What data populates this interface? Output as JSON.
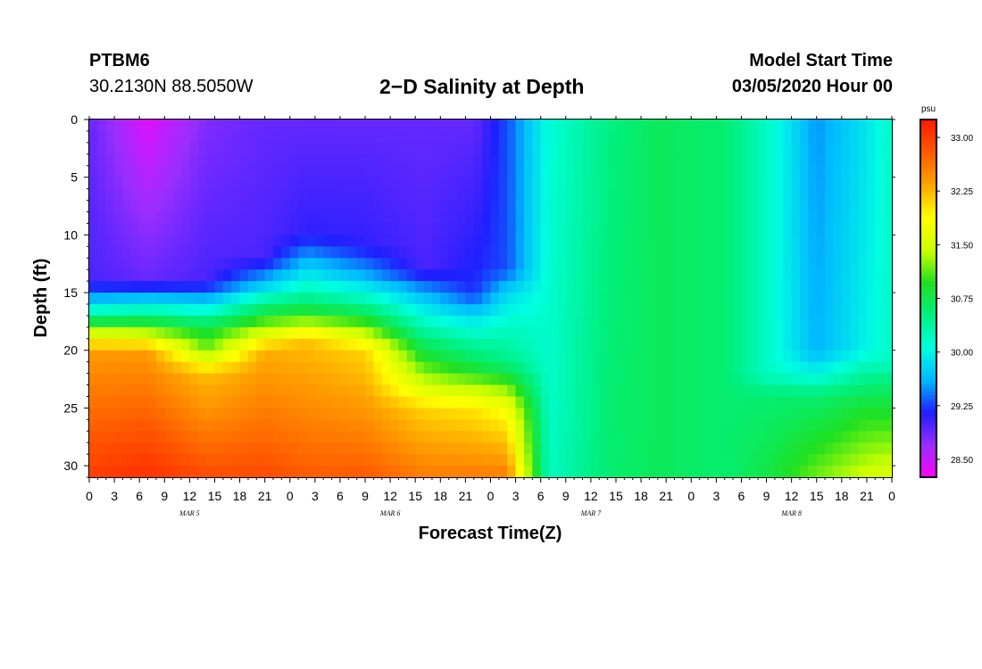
{
  "header": {
    "station_id": "PTBM6",
    "station_coords": "30.2130N 88.5050W",
    "title": "2−D Salinity at Depth",
    "model_label": "Model Start Time",
    "model_time": "03/05/2020 Hour 00"
  },
  "chart_data": {
    "type": "heatmap",
    "title": "2−D Salinity at Depth",
    "xlabel": "Forecast Time(Z)",
    "ylabel": "Depth (ft)",
    "x_units": "hours since 03/05/2020 00Z",
    "xlim": [
      0,
      96
    ],
    "ylim": [
      0,
      31
    ],
    "y_inverted": true,
    "x_tick_values": [
      0,
      3,
      6,
      9,
      12,
      15,
      18,
      21,
      24,
      27,
      30,
      33,
      36,
      39,
      42,
      45,
      48,
      51,
      54,
      57,
      60,
      63,
      66,
      69,
      72,
      75,
      78,
      81,
      84,
      87,
      90,
      93,
      96
    ],
    "x_tick_labels": [
      "0",
      "3",
      "6",
      "9",
      "12",
      "15",
      "18",
      "21",
      "0",
      "3",
      "6",
      "9",
      "12",
      "15",
      "18",
      "21",
      "0",
      "3",
      "6",
      "9",
      "12",
      "15",
      "18",
      "21",
      "0",
      "3",
      "6",
      "9",
      "12",
      "15",
      "18",
      "21",
      "0"
    ],
    "day_labels": [
      {
        "x": 12,
        "label": "MAR  5"
      },
      {
        "x": 36,
        "label": "MAR  6"
      },
      {
        "x": 60,
        "label": "MAR  7"
      },
      {
        "x": 84,
        "label": "MAR  8"
      }
    ],
    "y_tick_values": [
      0,
      5,
      10,
      15,
      20,
      25,
      30
    ],
    "y_tick_labels": [
      "0",
      "5",
      "10",
      "15",
      "20",
      "25",
      "30"
    ],
    "colorbar": {
      "units": "psu",
      "range": [
        28.25,
        33.25
      ],
      "tick_values": [
        33.0,
        32.25,
        31.5,
        30.75,
        30.0,
        29.25,
        28.5
      ],
      "tick_labels": [
        "33.00",
        "32.25",
        "31.50",
        "30.75",
        "30.00",
        "29.25",
        "28.50"
      ],
      "colors": [
        "#ff00ff",
        "#9a2eff",
        "#1f1fff",
        "#00b8ff",
        "#00ffe0",
        "#00f080",
        "#20e020",
        "#ccff00",
        "#ffff00",
        "#ffa500",
        "#ff5a00",
        "#ff1a00"
      ]
    },
    "time_profiles": [
      {
        "t": 0,
        "halocline_ft": 15.5,
        "sal": [
          [
            0,
            28.9
          ],
          [
            14,
            29.0
          ],
          [
            15.5,
            29.6
          ],
          [
            17,
            30.4
          ],
          [
            18.5,
            31.5
          ],
          [
            20,
            32.4
          ],
          [
            31,
            33.0
          ]
        ]
      },
      {
        "t": 7,
        "halocline_ft": 15.5,
        "sal": [
          [
            0,
            28.4
          ],
          [
            14,
            28.9
          ],
          [
            15.5,
            29.7
          ],
          [
            17,
            30.5
          ],
          [
            18.5,
            31.4
          ],
          [
            20,
            32.4
          ],
          [
            31,
            33.1
          ]
        ]
      },
      {
        "t": 14,
        "halocline_ft": 16.0,
        "sal": [
          [
            0,
            28.8
          ],
          [
            14,
            29.0
          ],
          [
            16,
            29.8
          ],
          [
            18,
            30.8
          ],
          [
            20,
            31.2
          ],
          [
            22,
            32.2
          ],
          [
            31,
            32.9
          ]
        ]
      },
      {
        "t": 21,
        "halocline_ft": 14.5,
        "sal": [
          [
            0,
            28.9
          ],
          [
            12,
            29.0
          ],
          [
            14.5,
            29.8
          ],
          [
            16,
            30.5
          ],
          [
            18,
            31.3
          ],
          [
            20,
            32.3
          ],
          [
            31,
            32.9
          ]
        ]
      },
      {
        "t": 26,
        "halocline_ft": 12.5,
        "sal": [
          [
            0,
            28.9
          ],
          [
            10,
            29.1
          ],
          [
            12.5,
            29.7
          ],
          [
            15,
            30.3
          ],
          [
            17,
            31.0
          ],
          [
            19,
            32.2
          ],
          [
            31,
            32.8
          ]
        ]
      },
      {
        "t": 33,
        "halocline_ft": 13.5,
        "sal": [
          [
            0,
            28.9
          ],
          [
            11,
            29.1
          ],
          [
            13.5,
            29.6
          ],
          [
            16,
            30.4
          ],
          [
            18,
            31.2
          ],
          [
            20,
            32.1
          ],
          [
            31,
            32.8
          ]
        ]
      },
      {
        "t": 40,
        "halocline_ft": 15.0,
        "sal": [
          [
            0,
            28.9
          ],
          [
            13,
            29.0
          ],
          [
            15,
            29.6
          ],
          [
            18,
            30.3
          ],
          [
            20,
            30.8
          ],
          [
            23,
            31.5
          ],
          [
            25,
            32.1
          ],
          [
            31,
            32.6
          ]
        ]
      },
      {
        "t": 46,
        "halocline_ft": 17.0,
        "sal": [
          [
            0,
            28.9
          ],
          [
            15,
            29.2
          ],
          [
            17,
            29.8
          ],
          [
            19,
            30.3
          ],
          [
            21,
            30.7
          ],
          [
            23,
            31.3
          ],
          [
            25,
            32.0
          ],
          [
            31,
            32.6
          ]
        ]
      },
      {
        "t": 50,
        "halocline_ft": 15.0,
        "sal": [
          [
            0,
            29.3
          ],
          [
            13,
            29.3
          ],
          [
            15,
            29.8
          ],
          [
            18,
            30.2
          ],
          [
            21,
            30.5
          ],
          [
            25,
            31.8
          ],
          [
            31,
            32.6
          ]
        ]
      },
      {
        "t": 55,
        "halocline_ft": 0,
        "sal": [
          [
            0,
            30.1
          ],
          [
            31,
            30.2
          ]
        ]
      },
      {
        "t": 62,
        "halocline_ft": 0,
        "sal": [
          [
            0,
            30.5
          ],
          [
            31,
            30.6
          ]
        ]
      },
      {
        "t": 68,
        "halocline_ft": 0,
        "sal": [
          [
            0,
            30.7
          ],
          [
            31,
            30.7
          ]
        ]
      },
      {
        "t": 76,
        "halocline_ft": 0,
        "sal": [
          [
            0,
            30.6
          ],
          [
            31,
            30.6
          ]
        ]
      },
      {
        "t": 81,
        "halocline_ft": 0,
        "sal": [
          [
            0,
            30.2
          ],
          [
            22,
            30.2
          ],
          [
            24,
            30.6
          ],
          [
            31,
            30.8
          ]
        ]
      },
      {
        "t": 87,
        "halocline_ft": 21.0,
        "sal": [
          [
            0,
            29.5
          ],
          [
            20,
            29.6
          ],
          [
            22,
            30.0
          ],
          [
            24,
            30.6
          ],
          [
            31,
            31.2
          ]
        ]
      },
      {
        "t": 93,
        "halocline_ft": 21.5,
        "sal": [
          [
            0,
            29.9
          ],
          [
            20,
            30.0
          ],
          [
            22,
            30.4
          ],
          [
            25,
            30.9
          ],
          [
            31,
            31.5
          ]
        ]
      },
      {
        "t": 96,
        "halocline_ft": 22.0,
        "sal": [
          [
            0,
            30.2
          ],
          [
            21,
            30.2
          ],
          [
            23,
            30.6
          ],
          [
            26,
            31.0
          ],
          [
            31,
            31.6
          ]
        ]
      }
    ]
  }
}
